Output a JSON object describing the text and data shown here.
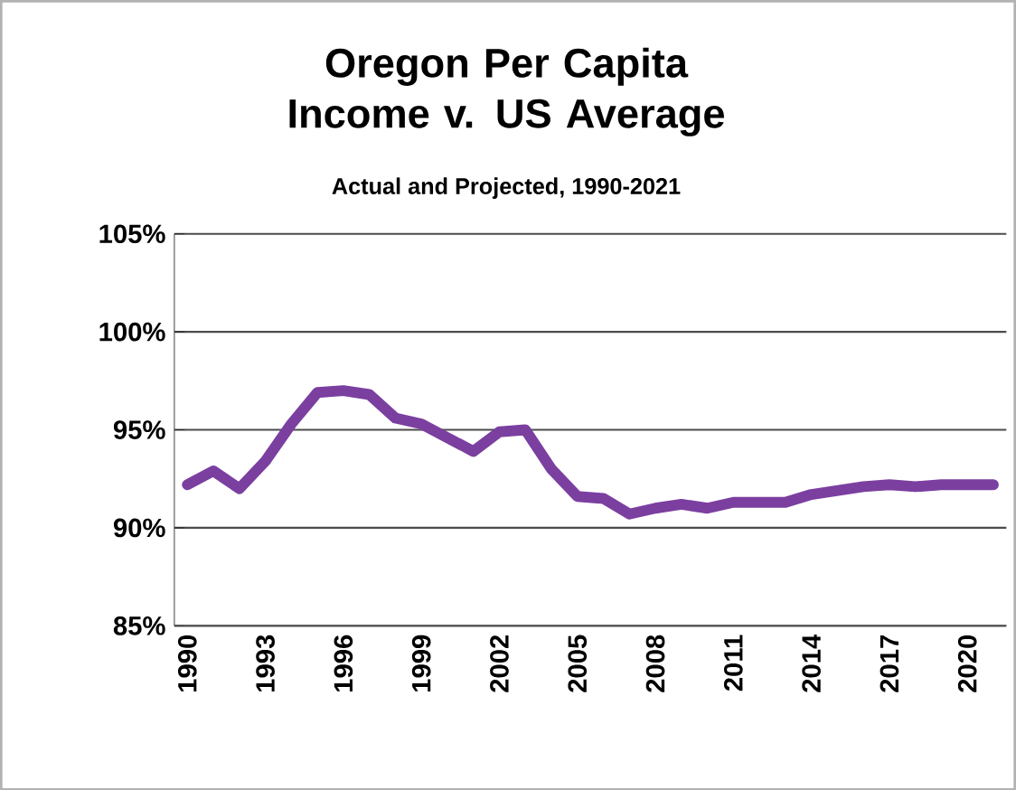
{
  "chart_data": {
    "type": "line",
    "title": "Oregon Per Capita Income v. US Average",
    "subtitle": "Actual and Projected, 1990-2021",
    "categories": [
      "1990",
      null,
      null,
      "1993",
      null,
      null,
      "1996",
      null,
      null,
      "1999",
      null,
      null,
      "2002",
      null,
      null,
      "2005",
      null,
      null,
      "2008",
      null,
      null,
      "2011",
      null,
      null,
      "2014",
      null,
      null,
      "2017",
      null,
      null,
      "2020",
      null
    ],
    "series": [
      {
        "color": "#7b3fa0",
        "values": [
          92.2,
          92.9,
          92.0,
          93.4,
          95.3,
          96.9,
          97.0,
          96.8,
          95.6,
          95.3,
          94.6,
          93.9,
          94.9,
          95.0,
          93.0,
          91.6,
          91.5,
          90.7,
          91.0,
          91.2,
          91.0,
          91.3,
          91.3,
          91.3,
          91.7,
          91.9,
          92.1,
          92.2,
          92.1,
          92.2,
          92.2,
          92.2
        ]
      }
    ],
    "ylim": [
      85,
      105
    ],
    "yticks": [
      {
        "value": 85,
        "label": "85%"
      },
      {
        "value": 90,
        "label": "90%"
      },
      {
        "value": 95,
        "label": "95%"
      },
      {
        "value": 100,
        "label": "100%"
      },
      {
        "value": 105,
        "label": "105%"
      }
    ],
    "grid": "y",
    "marker": "none",
    "line_style": "solid"
  }
}
